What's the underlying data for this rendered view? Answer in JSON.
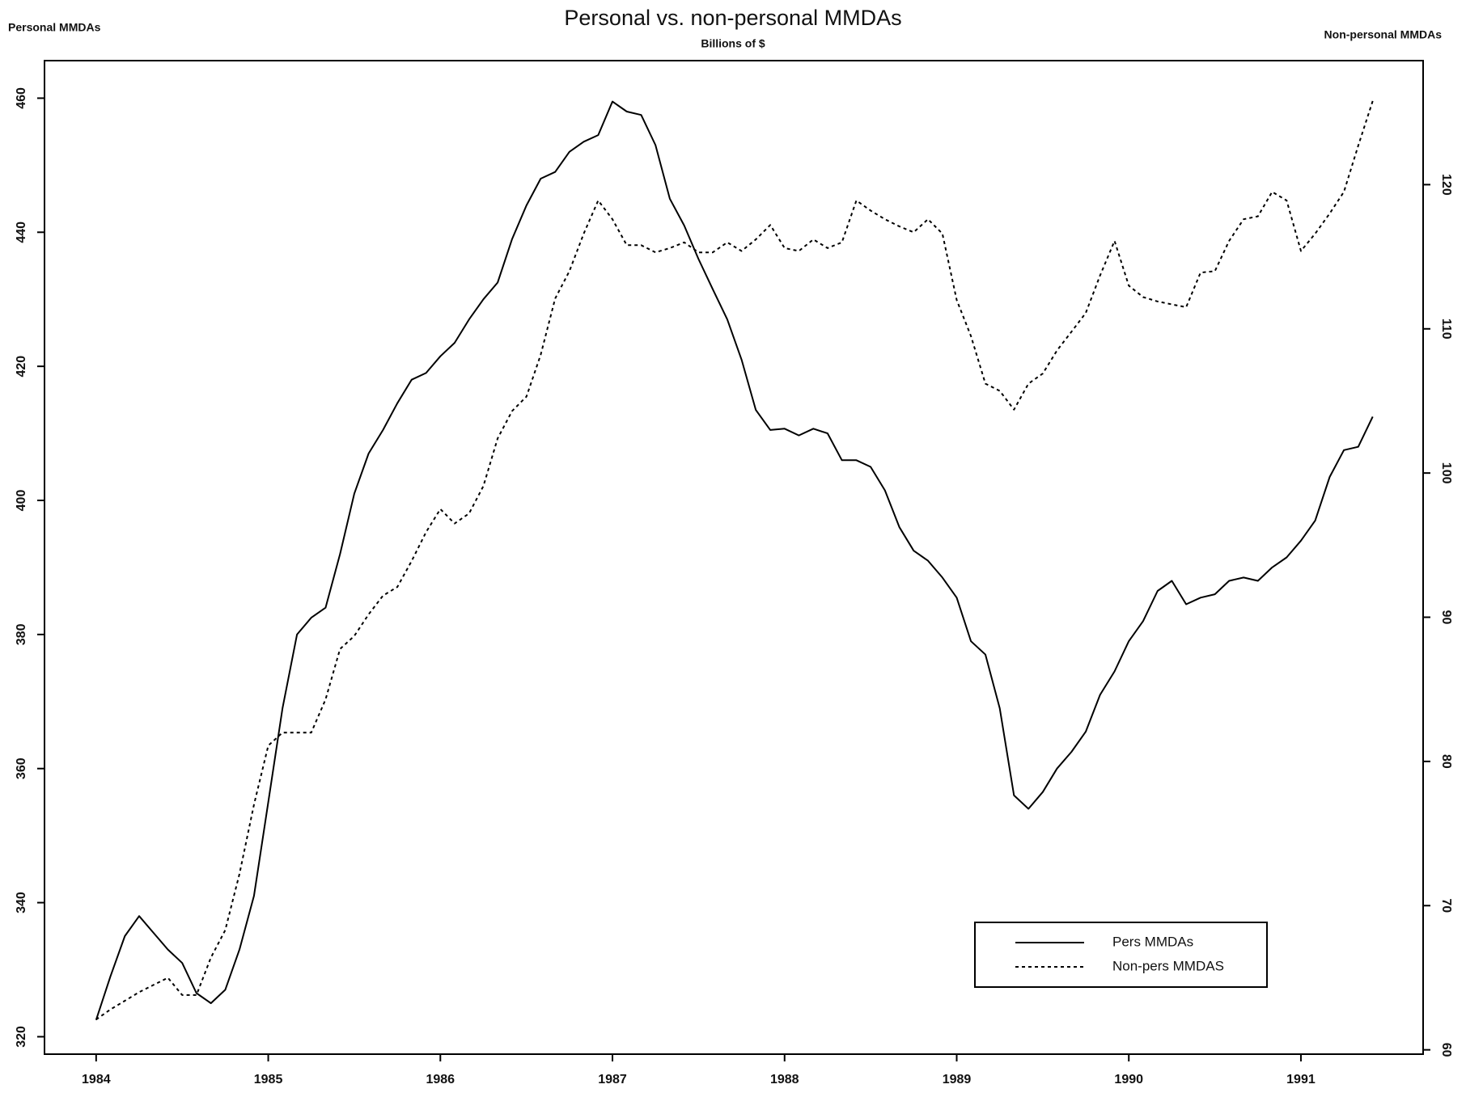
{
  "chart_data": {
    "type": "line",
    "title": "Personal vs. non-personal MMDAs",
    "subtitle": "Billions of $",
    "y_label": "Personal MMDAs",
    "y2_label": "Non-personal MMDAs",
    "x": [
      1984.0,
      1984.083,
      1984.167,
      1984.25,
      1984.333,
      1984.417,
      1984.5,
      1984.583,
      1984.667,
      1984.75,
      1984.833,
      1984.917,
      1985.0,
      1985.083,
      1985.167,
      1985.25,
      1985.333,
      1985.417,
      1985.5,
      1985.583,
      1985.667,
      1985.75,
      1985.833,
      1985.917,
      1986.0,
      1986.083,
      1986.167,
      1986.25,
      1986.333,
      1986.417,
      1986.5,
      1986.583,
      1986.667,
      1986.75,
      1986.833,
      1986.917,
      1987.0,
      1987.083,
      1987.167,
      1987.25,
      1987.333,
      1987.417,
      1987.5,
      1987.583,
      1987.667,
      1987.75,
      1987.833,
      1987.917,
      1988.0,
      1988.083,
      1988.167,
      1988.25,
      1988.333,
      1988.417,
      1988.5,
      1988.583,
      1988.667,
      1988.75,
      1988.833,
      1988.917,
      1989.0,
      1989.083,
      1989.167,
      1989.25,
      1989.333,
      1989.417,
      1989.5,
      1989.583,
      1989.667,
      1989.75,
      1989.833,
      1989.917,
      1990.0,
      1990.083,
      1990.167,
      1990.25,
      1990.333,
      1990.417,
      1990.5,
      1990.583,
      1990.667,
      1990.75,
      1990.833,
      1990.917,
      1991.0,
      1991.083,
      1991.167,
      1991.25,
      1991.333,
      1991.417
    ],
    "series": [
      {
        "name": "Pers MMDAs",
        "color": "#000000",
        "dash": "solid",
        "values": [
          322.5,
          329,
          335,
          338,
          335.5,
          333,
          331,
          326.5,
          325,
          327,
          333,
          341,
          355,
          369,
          380,
          382.5,
          384,
          392,
          401,
          407,
          410.5,
          414.5,
          418,
          419,
          421.5,
          423.5,
          427,
          430,
          432.5,
          439,
          444,
          448,
          449,
          452,
          453.5,
          454.5,
          459.5,
          458,
          457.5,
          453,
          445,
          441,
          436,
          431.5,
          427,
          421,
          413.5,
          410.5,
          410.7,
          409.7,
          410.7,
          410,
          406,
          406,
          405,
          401.5,
          396,
          392.5,
          391,
          388.5,
          385.5,
          379,
          377,
          369,
          356,
          354,
          356.5,
          360,
          362.5,
          365.5,
          371,
          374.5,
          379,
          382,
          386.5,
          388,
          384.5,
          385.5,
          386,
          388,
          388.5,
          388,
          390,
          391.5,
          394,
          397,
          403.5,
          407.5,
          408,
          412.5
        ]
      },
      {
        "name": "Non-pers MMDAS",
        "color": "#000000",
        "dash": "dotted",
        "axis": "y2",
        "values": [
          62.1,
          62.8,
          63.4,
          64.0,
          64.5,
          65.0,
          63.8,
          63.8,
          66.4,
          68.3,
          72.2,
          77.0,
          81.1,
          82,
          82,
          82,
          84.3,
          87.8,
          88.7,
          90.2,
          91.5,
          92.1,
          93.9,
          95.9,
          97.5,
          96.5,
          97.2,
          99.1,
          102.4,
          104.3,
          105.3,
          108.2,
          112.1,
          114,
          116.6,
          118.9,
          117.6,
          115.8,
          115.8,
          115.3,
          115.6,
          116,
          115.3,
          115.3,
          116,
          115.4,
          116.2,
          117.2,
          115.6,
          115.4,
          116.2,
          115.6,
          116,
          118.9,
          118.2,
          117.6,
          117.1,
          116.7,
          117.6,
          116.6,
          112,
          109.5,
          106.2,
          105.7,
          104.4,
          106.2,
          106.9,
          108.5,
          109.8,
          111.1,
          113.7,
          116.1,
          113,
          112.2,
          111.9,
          111.7,
          111.5,
          113.9,
          114,
          116.1,
          117.6,
          117.8,
          119.5,
          118.9,
          115.4,
          116.6,
          118,
          119.5,
          122.7,
          125.8
        ]
      }
    ],
    "xlim": [
      1983.7,
      1991.71
    ],
    "xticks": [
      1984,
      1985,
      1986,
      1987,
      1988,
      1989,
      1990,
      1991
    ],
    "ylim": [
      317.4,
      465.6
    ],
    "yticks": [
      320,
      340,
      360,
      380,
      400,
      420,
      440,
      460
    ],
    "y2lim": [
      59.7,
      128.6
    ],
    "y2ticks": [
      60,
      70,
      80,
      90,
      100,
      110,
      120
    ],
    "grid": false,
    "legend": "lower right"
  }
}
